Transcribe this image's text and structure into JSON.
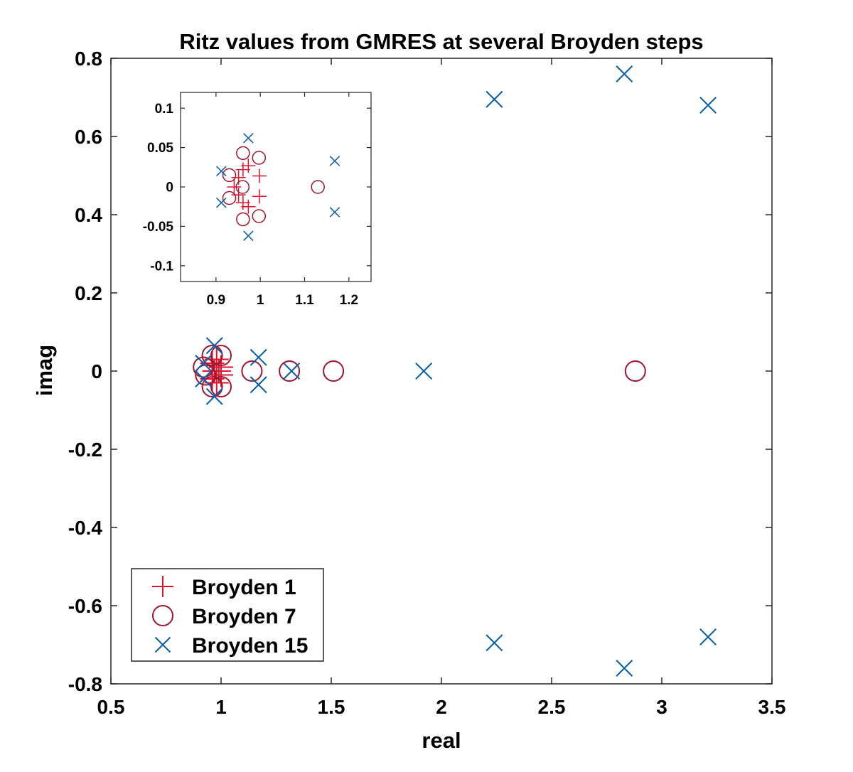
{
  "chart_data": [
    {
      "type": "scatter",
      "panel": "main",
      "title": "Ritz values from GMRES at several Broyden steps",
      "xlabel": "real",
      "ylabel": "imag",
      "xlim": [
        0.5,
        3.5
      ],
      "ylim": [
        -0.8,
        0.8
      ],
      "xticks": [
        0.5,
        1,
        1.5,
        2,
        2.5,
        3,
        3.5
      ],
      "xtick_labels": [
        "0.5",
        "1",
        "1.5",
        "2",
        "2.5",
        "3",
        "3.5"
      ],
      "yticks": [
        -0.8,
        -0.6,
        -0.4,
        -0.2,
        0,
        0.2,
        0.4,
        0.6,
        0.8
      ],
      "ytick_labels": [
        "-0.8",
        "-0.6",
        "-0.4",
        "-0.2",
        "0",
        "0.2",
        "0.4",
        "0.6",
        "0.8"
      ],
      "grid": false,
      "legend_position": "bottom-left",
      "series": [
        {
          "name": "Broyden 1",
          "marker": "plus",
          "color": "#e8112d",
          "points": [
            [
              0.96,
              0.02
            ],
            [
              0.98,
              0.03
            ],
            [
              1.0,
              0.01
            ],
            [
              0.97,
              0.0
            ],
            [
              1.0,
              -0.01
            ],
            [
              0.98,
              -0.03
            ],
            [
              0.96,
              -0.02
            ],
            [
              0.99,
              0.0
            ]
          ]
        },
        {
          "name": "Broyden 7",
          "marker": "circle",
          "color": "#a2142f",
          "points": [
            [
              0.92,
              0.01
            ],
            [
              0.96,
              0.04
            ],
            [
              1.0,
              0.04
            ],
            [
              0.93,
              -0.01
            ],
            [
              0.96,
              -0.04
            ],
            [
              1.0,
              -0.04
            ],
            [
              1.14,
              0.0
            ],
            [
              1.31,
              0.0
            ],
            [
              1.51,
              0.0
            ],
            [
              2.88,
              0.0
            ]
          ]
        },
        {
          "name": "Broyden 15",
          "marker": "x",
          "color": "#0a5ea8",
          "points": [
            [
              0.92,
              0.02
            ],
            [
              0.92,
              -0.02
            ],
            [
              0.97,
              0.065
            ],
            [
              0.97,
              -0.065
            ],
            [
              1.17,
              0.035
            ],
            [
              1.17,
              -0.035
            ],
            [
              1.32,
              0.0
            ],
            [
              1.92,
              0.0
            ],
            [
              2.24,
              0.695
            ],
            [
              2.24,
              -0.695
            ],
            [
              2.83,
              0.76
            ],
            [
              2.83,
              -0.76
            ],
            [
              3.21,
              0.68
            ],
            [
              3.21,
              -0.68
            ]
          ]
        }
      ]
    },
    {
      "type": "scatter",
      "panel": "inset",
      "xlim": [
        0.82,
        1.25
      ],
      "ylim": [
        -0.12,
        0.12
      ],
      "xticks": [
        0.9,
        1,
        1.1,
        1.2
      ],
      "xtick_labels": [
        "0.9",
        "1",
        "1.1",
        "1.2"
      ],
      "yticks": [
        -0.1,
        -0.05,
        0,
        0.05,
        0.1
      ],
      "ytick_labels": [
        "-0.1",
        "-0.05",
        "0",
        "0.05",
        "0.1"
      ],
      "series": [
        {
          "name": "Broyden 1",
          "marker": "plus",
          "color": "#e8112d",
          "points": [
            [
              0.941,
              0.0
            ],
            [
              0.951,
              0.012
            ],
            [
              0.961,
              0.022
            ],
            [
              0.973,
              0.027
            ],
            [
              0.998,
              0.014
            ],
            [
              0.998,
              -0.012
            ],
            [
              0.973,
              -0.025
            ],
            [
              0.961,
              -0.02
            ],
            [
              0.951,
              -0.01
            ]
          ]
        },
        {
          "name": "Broyden 7",
          "marker": "circle",
          "color": "#a2142f",
          "points": [
            [
              0.93,
              0.015
            ],
            [
              0.961,
              0.043
            ],
            [
              0.997,
              0.037
            ],
            [
              0.96,
              0.0
            ],
            [
              0.93,
              -0.014
            ],
            [
              0.961,
              -0.041
            ],
            [
              0.997,
              -0.037
            ],
            [
              1.13,
              0.0
            ]
          ]
        },
        {
          "name": "Broyden 15",
          "marker": "x",
          "color": "#0a5ea8",
          "points": [
            [
              0.912,
              0.02
            ],
            [
              0.912,
              -0.02
            ],
            [
              0.973,
              0.062
            ],
            [
              0.973,
              -0.062
            ],
            [
              1.168,
              0.033
            ],
            [
              1.168,
              -0.032
            ]
          ]
        }
      ]
    }
  ]
}
